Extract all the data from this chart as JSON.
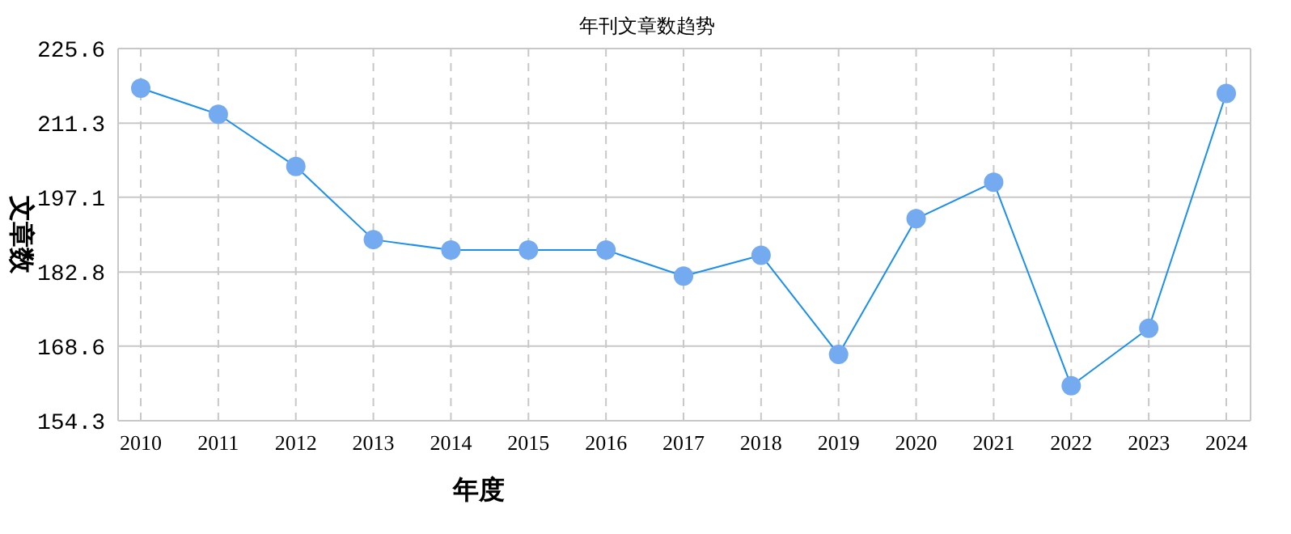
{
  "chart_data": {
    "type": "line",
    "title": "年刊文章数趋势",
    "xlabel": "年度",
    "ylabel": "文章数",
    "categories": [
      "2010",
      "2011",
      "2012",
      "2013",
      "2014",
      "2015",
      "2016",
      "2017",
      "2018",
      "2019",
      "2020",
      "2021",
      "2022",
      "2023",
      "2024"
    ],
    "series": [
      {
        "color": "#74aaf0",
        "values": [
          218,
          213,
          203,
          189,
          187,
          187,
          187,
          182,
          186,
          167,
          193,
          200,
          161,
          172,
          217
        ]
      }
    ],
    "ylim": [
      154.3,
      225.6
    ],
    "yticks": [
      154.3,
      168.6,
      182.8,
      197.1,
      211.3,
      225.6
    ],
    "grid": true,
    "marker": "circle",
    "line_style": "solid"
  }
}
